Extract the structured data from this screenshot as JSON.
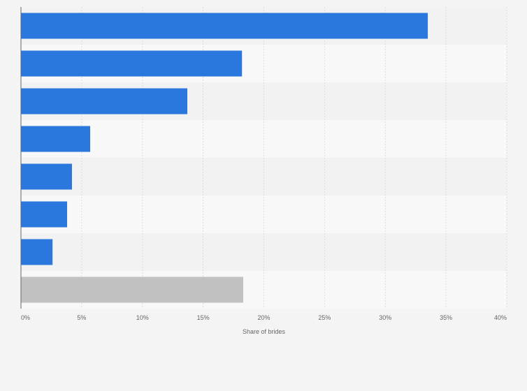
{
  "chart_data": {
    "type": "bar",
    "orientation": "horizontal",
    "categories": [
      "",
      "",
      "",
      "",
      "",
      "",
      "",
      ""
    ],
    "values": [
      33.5,
      18.2,
      13.7,
      5.7,
      4.2,
      3.8,
      2.6,
      18.3
    ],
    "xlabel": "Share of brides",
    "xlim": [
      0,
      40
    ],
    "ticks": [
      0,
      5,
      10,
      15,
      20,
      25,
      30,
      35,
      40
    ],
    "tick_labels": [
      "0%",
      "5%",
      "10%",
      "15%",
      "20%",
      "25%",
      "30%",
      "35%",
      "40%"
    ],
    "grid": true,
    "colors": {
      "bar": "#2a78dd",
      "bar_highlight": "#c1c1c1",
      "grid": "#dcdcdc",
      "band_dark": "#f2f2f2",
      "band_light": "#f8f8f8",
      "axis": "#666666"
    },
    "highlight_index": 7
  }
}
